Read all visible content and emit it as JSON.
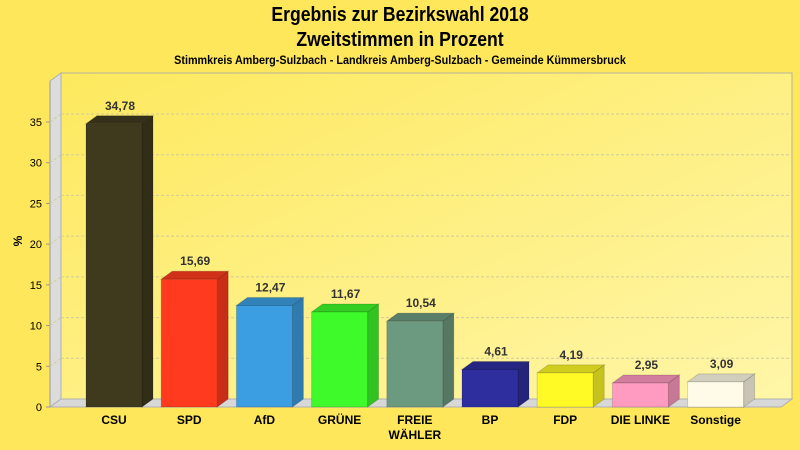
{
  "chart_data": {
    "type": "bar",
    "title": "Ergebnis zur Bezirkswahl 2018",
    "subtitle": "Zweitstimmen in Prozent",
    "caption": "Stimmkreis Amberg-Sulzbach - Landkreis Amberg-Sulzbach - Gemeinde Kümmersbruck",
    "xlabel": "",
    "ylabel": "%",
    "ylim": [
      0,
      38
    ],
    "yticks": [
      0,
      5,
      10,
      15,
      20,
      25,
      30,
      35
    ],
    "grid": true,
    "categories": [
      [
        "CSU"
      ],
      [
        "SPD"
      ],
      [
        "AfD"
      ],
      [
        "GRÜNE"
      ],
      [
        "FREIE",
        "WÄHLER"
      ],
      [
        "BP"
      ],
      [
        "FDP"
      ],
      [
        "DIE LINKE"
      ],
      [
        "Sonstige"
      ]
    ],
    "values": [
      34.78,
      15.69,
      12.47,
      11.67,
      10.54,
      4.61,
      4.19,
      2.95,
      3.09
    ],
    "value_labels": [
      "34,78",
      "15,69",
      "12,47",
      "11,67",
      "10,54",
      "4,61",
      "4,19",
      "2,95",
      "3,09"
    ],
    "colors": [
      "#3f3a1e",
      "#ff3a1e",
      "#3c9ee2",
      "#3ffa2a",
      "#6c9a80",
      "#2e2e9e",
      "#fffa26",
      "#ff9ac0",
      "#fffbe8"
    ]
  }
}
